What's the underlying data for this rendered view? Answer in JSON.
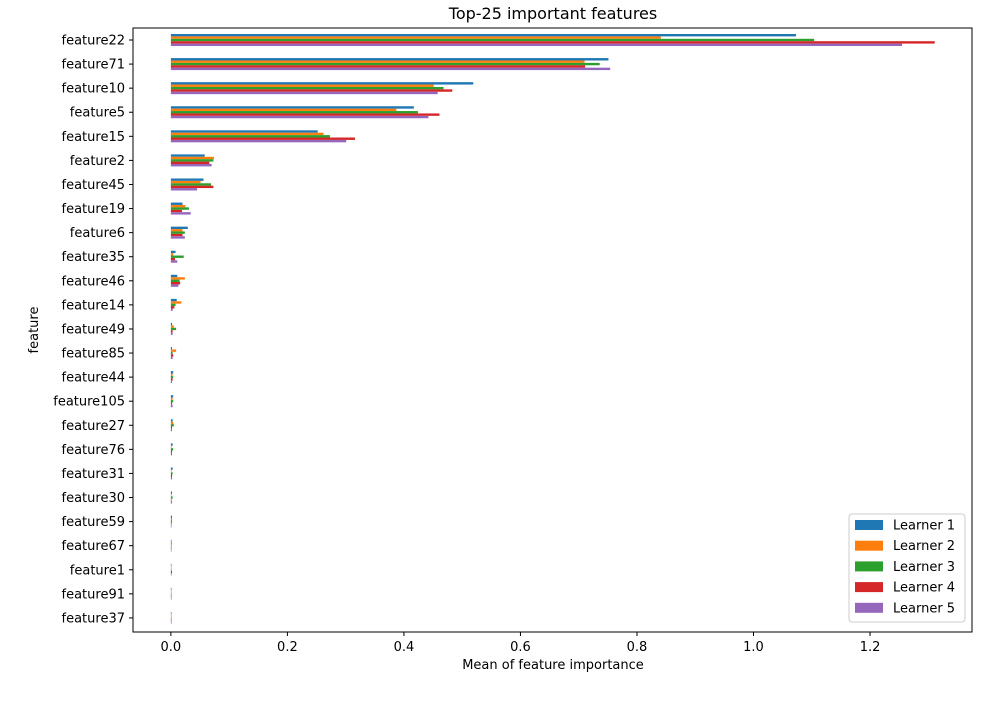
{
  "chart_data": {
    "type": "bar",
    "orientation": "horizontal",
    "title": "Top-25 important features",
    "xlabel": "Mean of feature importance",
    "ylabel": "feature",
    "xlim": [
      -0.065,
      1.375
    ],
    "xticks": [
      0.0,
      0.2,
      0.4,
      0.6,
      0.8,
      1.0,
      1.2
    ],
    "xtick_labels": [
      "0.0",
      "0.2",
      "0.4",
      "0.6",
      "0.8",
      "1.0",
      "1.2"
    ],
    "grid": false,
    "legend_position": "lower-right",
    "categories": [
      "feature22",
      "feature71",
      "feature10",
      "feature5",
      "feature15",
      "feature2",
      "feature45",
      "feature19",
      "feature6",
      "feature35",
      "feature46",
      "feature14",
      "feature49",
      "feature85",
      "feature44",
      "feature105",
      "feature27",
      "feature76",
      "feature31",
      "feature30",
      "feature59",
      "feature67",
      "feature1",
      "feature91",
      "feature37"
    ],
    "series": [
      {
        "name": "Learner 1",
        "color": "#1f77b4",
        "values": [
          1.073,
          0.751,
          0.519,
          0.417,
          0.252,
          0.058,
          0.056,
          0.02,
          0.029,
          0.008,
          0.011,
          0.01,
          0.002,
          0.002,
          0.004,
          0.004,
          0.003,
          0.003,
          0.003,
          0.002,
          0.002,
          0.001,
          0.0,
          0.001,
          0.001
        ]
      },
      {
        "name": "Learner 2",
        "color": "#ff7f0e",
        "values": [
          0.841,
          0.71,
          0.451,
          0.387,
          0.262,
          0.074,
          0.051,
          0.025,
          0.02,
          0.004,
          0.024,
          0.018,
          0.005,
          0.009,
          0.003,
          0.003,
          0.004,
          0.001,
          0.001,
          0.001,
          0.002,
          0.002,
          0.001,
          0.001,
          0.0
        ]
      },
      {
        "name": "Learner 3",
        "color": "#2ca02c",
        "values": [
          1.104,
          0.736,
          0.468,
          0.424,
          0.273,
          0.073,
          0.069,
          0.031,
          0.024,
          0.022,
          0.015,
          0.008,
          0.009,
          0.003,
          0.004,
          0.004,
          0.005,
          0.004,
          0.003,
          0.003,
          0.002,
          0.001,
          0.0,
          0.001,
          0.0
        ]
      },
      {
        "name": "Learner 4",
        "color": "#d62728",
        "values": [
          1.311,
          0.711,
          0.483,
          0.461,
          0.316,
          0.066,
          0.073,
          0.019,
          0.02,
          0.007,
          0.016,
          0.006,
          0.003,
          0.004,
          0.003,
          0.002,
          0.002,
          0.002,
          0.002,
          0.001,
          0.001,
          0.001,
          0.002,
          0.001,
          0.0
        ]
      },
      {
        "name": "Learner 5",
        "color": "#9467bd",
        "values": [
          1.255,
          0.754,
          0.458,
          0.442,
          0.301,
          0.07,
          0.045,
          0.034,
          0.024,
          0.011,
          0.013,
          0.003,
          0.003,
          0.003,
          0.002,
          0.003,
          0.002,
          0.002,
          0.002,
          0.002,
          0.001,
          0.001,
          0.0,
          0.001,
          0.001
        ]
      }
    ]
  }
}
